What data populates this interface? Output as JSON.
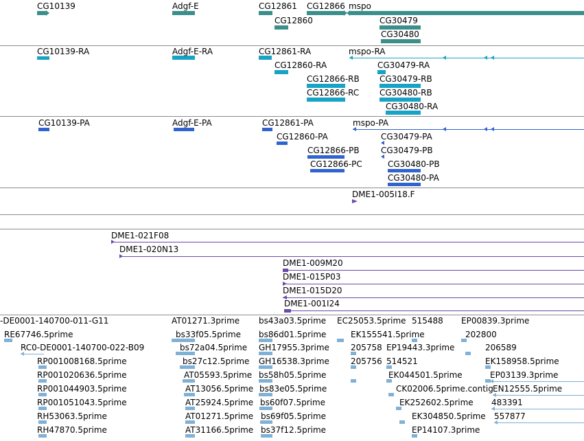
{
  "colors": {
    "gene": "#3a8f8a",
    "rna": "#17a3c5",
    "protein": "#2f63d0",
    "clone": "#6a4aa8",
    "est": "#7fb0d6",
    "separator": "#8c8c8c"
  },
  "genes": {
    "g1": "CG10139",
    "g2": "Adgf-E",
    "g3": "CG12861",
    "g4": "CG12866",
    "g5": "mspo",
    "g6": "CG12860",
    "g7": "CG30479",
    "g8": "CG30480"
  },
  "rnas": {
    "r1": "CG10139-RA",
    "r2": "Adgf-E-RA",
    "r3": "CG12861-RA",
    "r4": "mspo-RA",
    "r5": "CG12860-RA",
    "r6": "CG30479-RA",
    "r7": "CG12866-RB",
    "r8": "CG30479-RB",
    "r9": "CG12866-RC",
    "r10": "CG30480-RB",
    "r11": "CG30480-RA"
  },
  "proteins": {
    "p1": "CG10139-PA",
    "p2": "Adgf-E-PA",
    "p3": "CG12861-PA",
    "p4": "mspo-PA",
    "p5": "CG12860-PA",
    "p6": "CG30479-PA",
    "p7": "CG12866-PB",
    "p8": "CG30479-PB",
    "p9": "CG12866-PC",
    "p10": "CG30480-PB",
    "p11": "CG30480-PA"
  },
  "clones": {
    "c1": "DME1-005I18.F",
    "c2": "DME1-021F08",
    "c3": "DME1-020N13",
    "c4": "DME1-009M20",
    "c5": "DME1-015P03",
    "c6": "DME1-015D20",
    "c7": "DME1-001I24"
  },
  "ests": {
    "e1": "-DE0001-140700-011-G11",
    "e2": "RE67746.5prime",
    "e3": "RC0-DE0001-140700-022-B09",
    "e4": "RP001008168.5prime",
    "e5": "RP001020636.5prime",
    "e6": "RP001044903.5prime",
    "e7": "RP001051043.5prime",
    "e8": "RH53063.5prime",
    "e9": "RH47870.5prime",
    "e10": "AT01271.3prime",
    "e11": "bs33f05.5prime",
    "e12": "bs72a04.5prime",
    "e13": "bs27c12.5prime",
    "e14": "AT05593.5prime",
    "e15": "AT13056.5prime",
    "e16": "AT25924.5prime",
    "e17": "AT01271.5prime",
    "e18": "AT31166.5prime",
    "e19": "bs43a03.5prime",
    "e20": "bs86d01.5prime",
    "e21": "GH17955.3prime",
    "e22": "GH16538.3prime",
    "e23": "bs58h05.5prime",
    "e24": "bs83e05.5prime",
    "e25": "bs60f07.5prime",
    "e26": "bs69f05.5prime",
    "e27": "bs37f12.5prime",
    "e28": "EC25053.5prime",
    "e29": "EK155541.5prime",
    "e30": "205758",
    "e31": "205756",
    "e32": "515488",
    "e33": "EP19443.3prime",
    "e34": "514521",
    "e35": "EK044501.5prime",
    "e36": "CK02006.5prime.contig",
    "e37": "EK252602.5prime",
    "e38": "EK304850.5prime",
    "e39": "EP14107.3prime",
    "e40": "EP00839.3prime",
    "e41": "202800",
    "e42": "206589",
    "e43": "EK158958.5prime",
    "e44": "EP03139.3prime",
    "e45": "EN12555.5prime",
    "e46": "483391",
    "e47": "557877"
  }
}
